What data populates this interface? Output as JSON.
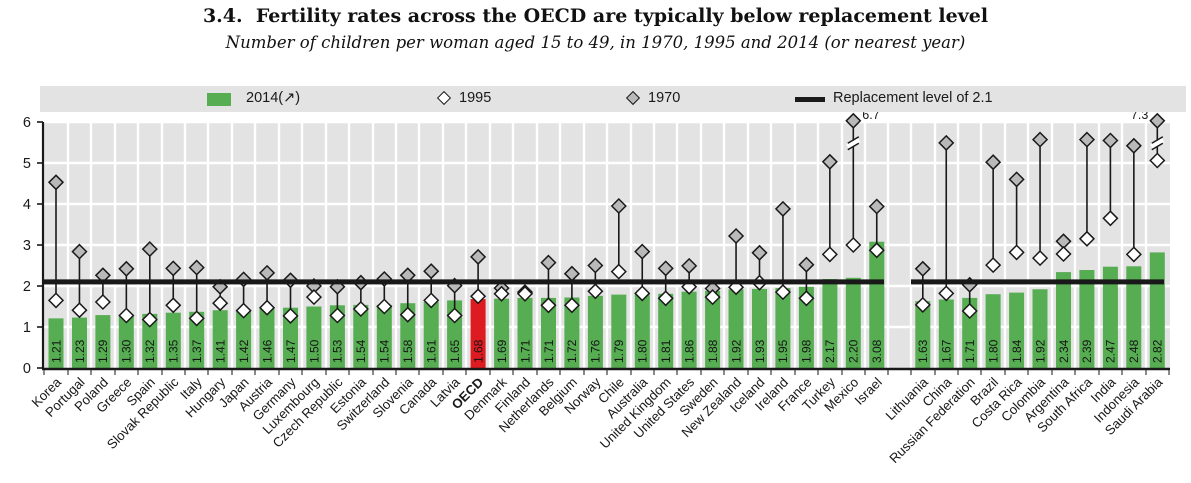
{
  "header": {
    "number": "3.4.",
    "title": "Fertility rates across the OECD are typically below replacement level",
    "subtitle": "Number of children per woman aged 15 to 49, in 1970, 1995 and 2014 (or nearest year)"
  },
  "legend": {
    "bar_label": "2014(↗)",
    "white_diamond_label": "1995",
    "gray_diamond_label": "1970",
    "line_label": "Replacement level of 2.1"
  },
  "colors": {
    "bar_green": "#56ad52",
    "bar_highlight_red": "#dd1b21",
    "diamond_gray": "#b9b9b9",
    "diamond_white": "#ffffff",
    "plot_background": "#e3e3e3",
    "gridline": "#ffffff",
    "replacement_line": "#191919",
    "text": "#191919"
  },
  "chart_data": {
    "type": "bar",
    "title": "3.4. Fertility rates across the OECD are typically below replacement level",
    "subtitle": "Number of children per woman aged 15 to 49, in 1970, 1995 and 2014 (or nearest year)",
    "ylabel": "",
    "xlabel": "",
    "ylim": [
      0,
      6
    ],
    "yticks": [
      0,
      1,
      2,
      3,
      4,
      5,
      6
    ],
    "grid": true,
    "legend_position": "top",
    "replacement_level": 2.1,
    "series_names": [
      "2014",
      "1995",
      "1970"
    ],
    "countries": [
      {
        "name": "Korea",
        "y2014": 1.21,
        "y1995": 1.65,
        "y1970": 4.53
      },
      {
        "name": "Portugal",
        "y2014": 1.23,
        "y1995": 1.41,
        "y1970": 2.84
      },
      {
        "name": "Poland",
        "y2014": 1.29,
        "y1995": 1.61,
        "y1970": 2.26
      },
      {
        "name": "Greece",
        "y2014": 1.3,
        "y1995": 1.28,
        "y1970": 2.42
      },
      {
        "name": "Spain",
        "y2014": 1.32,
        "y1995": 1.18,
        "y1970": 2.9
      },
      {
        "name": "Slovak Republic",
        "y2014": 1.35,
        "y1995": 1.53,
        "y1970": 2.43
      },
      {
        "name": "Italy",
        "y2014": 1.37,
        "y1995": 1.21,
        "y1970": 2.45
      },
      {
        "name": "Hungary",
        "y2014": 1.41,
        "y1995": 1.58,
        "y1970": 1.98
      },
      {
        "name": "Japan",
        "y2014": 1.42,
        "y1995": 1.4,
        "y1970": 2.16
      },
      {
        "name": "Austria",
        "y2014": 1.46,
        "y1995": 1.47,
        "y1970": 2.32
      },
      {
        "name": "Germany",
        "y2014": 1.47,
        "y1995": 1.27,
        "y1970": 2.14
      },
      {
        "name": "Luxembourg",
        "y2014": 1.5,
        "y1995": 1.73,
        "y1970": 2.0
      },
      {
        "name": "Czech Republic",
        "y2014": 1.53,
        "y1995": 1.28,
        "y1970": 1.98
      },
      {
        "name": "Estonia",
        "y2014": 1.54,
        "y1995": 1.44,
        "y1970": 2.08
      },
      {
        "name": "Switzerland",
        "y2014": 1.54,
        "y1995": 1.5,
        "y1970": 2.17
      },
      {
        "name": "Slovenia",
        "y2014": 1.58,
        "y1995": 1.3,
        "y1970": 2.26
      },
      {
        "name": "Canada",
        "y2014": 1.61,
        "y1995": 1.65,
        "y1970": 2.36
      },
      {
        "name": "Latvia",
        "y2014": 1.65,
        "y1995": 1.28,
        "y1970": 2.01
      },
      {
        "name": "OECD",
        "y2014": 1.68,
        "y1995": 1.75,
        "y1970": 2.71,
        "highlight": true
      },
      {
        "name": "Denmark",
        "y2014": 1.69,
        "y1995": 1.81,
        "y1970": 1.95
      },
      {
        "name": "Finland",
        "y2014": 1.71,
        "y1995": 1.81,
        "y1970": 1.85
      },
      {
        "name": "Netherlands",
        "y2014": 1.71,
        "y1995": 1.53,
        "y1970": 2.57
      },
      {
        "name": "Belgium",
        "y2014": 1.72,
        "y1995": 1.53,
        "y1970": 2.3
      },
      {
        "name": "Norway",
        "y2014": 1.76,
        "y1995": 1.87,
        "y1970": 2.5
      },
      {
        "name": "Chile",
        "y2014": 1.79,
        "y1995": 2.35,
        "y1970": 3.95
      },
      {
        "name": "Australia",
        "y2014": 1.8,
        "y1995": 1.82,
        "y1970": 2.84
      },
      {
        "name": "United Kingdom",
        "y2014": 1.81,
        "y1995": 1.7,
        "y1970": 2.43
      },
      {
        "name": "United States",
        "y2014": 1.86,
        "y1995": 1.98,
        "y1970": 2.49
      },
      {
        "name": "Sweden",
        "y2014": 1.88,
        "y1995": 1.73,
        "y1970": 1.94
      },
      {
        "name": "New Zealand",
        "y2014": 1.92,
        "y1995": 1.97,
        "y1970": 3.22
      },
      {
        "name": "Iceland",
        "y2014": 1.93,
        "y1995": 2.08,
        "y1970": 2.81
      },
      {
        "name": "Ireland",
        "y2014": 1.95,
        "y1995": 1.85,
        "y1970": 3.88
      },
      {
        "name": "France",
        "y2014": 1.98,
        "y1995": 1.7,
        "y1970": 2.52
      },
      {
        "name": "Turkey",
        "y2014": 2.17,
        "y1995": 2.77,
        "y1970": 5.03
      },
      {
        "name": "Mexico",
        "y2014": 2.2,
        "y1995": 3.0,
        "y1970": 6.7,
        "off_scale": true,
        "annotation": "6.7",
        "annotation_side": "right"
      },
      {
        "name": "Israel",
        "y2014": 3.08,
        "y1995": 2.87,
        "y1970": 3.94
      },
      {
        "name": "Lithuania",
        "y2014": 1.63,
        "y1995": 1.54,
        "y1970": 2.42,
        "gap_before": true
      },
      {
        "name": "China",
        "y2014": 1.67,
        "y1995": 1.82,
        "y1970": 5.49
      },
      {
        "name": "Russian Federation",
        "y2014": 1.71,
        "y1995": 1.39,
        "y1970": 2.03
      },
      {
        "name": "Brazil",
        "y2014": 1.8,
        "y1995": 2.51,
        "y1970": 5.02
      },
      {
        "name": "Costa Rica",
        "y2014": 1.84,
        "y1995": 2.82,
        "y1970": 4.6
      },
      {
        "name": "Colombia",
        "y2014": 1.92,
        "y1995": 2.68,
        "y1970": 5.57
      },
      {
        "name": "Argentina",
        "y2014": 2.34,
        "y1995": 2.78,
        "y1970": 3.09
      },
      {
        "name": "South Africa",
        "y2014": 2.39,
        "y1995": 3.15,
        "y1970": 5.57
      },
      {
        "name": "India",
        "y2014": 2.47,
        "y1995": 3.65,
        "y1970": 5.55
      },
      {
        "name": "Indonesia",
        "y2014": 2.48,
        "y1995": 2.77,
        "y1970": 5.42
      },
      {
        "name": "Saudi Arabia",
        "y2014": 2.82,
        "y1995": 5.06,
        "y1970": 7.3,
        "off_scale": true,
        "annotation": "7.3",
        "annotation_side": "left"
      }
    ]
  }
}
